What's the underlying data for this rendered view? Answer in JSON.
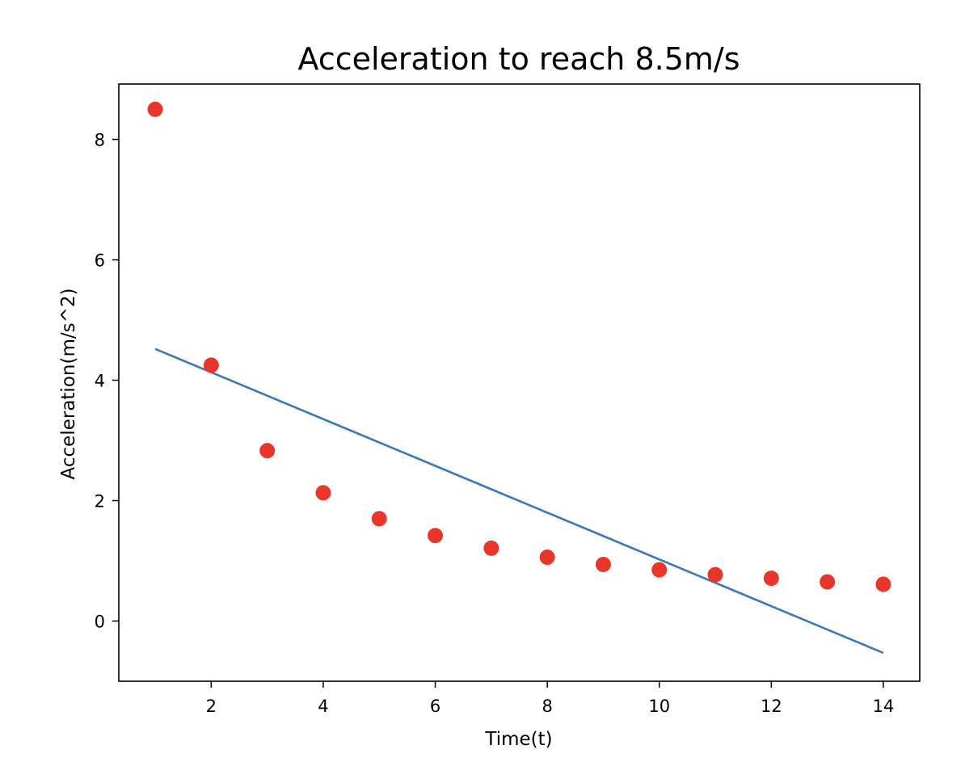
{
  "chart_data": {
    "type": "scatter",
    "title": "Acceleration to reach 8.5m/s",
    "xlabel": "Time(t)",
    "ylabel": "Acceleration(m/s^2)",
    "xlim": [
      0.35,
      14.65
    ],
    "ylim": [
      -1.0,
      8.92
    ],
    "xticks": [
      2,
      4,
      6,
      8,
      10,
      12,
      14
    ],
    "yticks": [
      0,
      2,
      4,
      6,
      8
    ],
    "grid": false,
    "series": [
      {
        "kind": "scatter",
        "color": "#e8362a",
        "x": [
          1,
          2,
          3,
          4,
          5,
          6,
          7,
          8,
          9,
          10,
          11,
          12,
          13,
          14
        ],
        "y": [
          8.5,
          4.25,
          2.83,
          2.13,
          1.7,
          1.42,
          1.21,
          1.06,
          0.94,
          0.85,
          0.77,
          0.71,
          0.65,
          0.61
        ]
      },
      {
        "kind": "line",
        "color": "#3a78bb",
        "x": [
          1,
          14
        ],
        "y": [
          4.52,
          -0.53
        ]
      }
    ]
  }
}
